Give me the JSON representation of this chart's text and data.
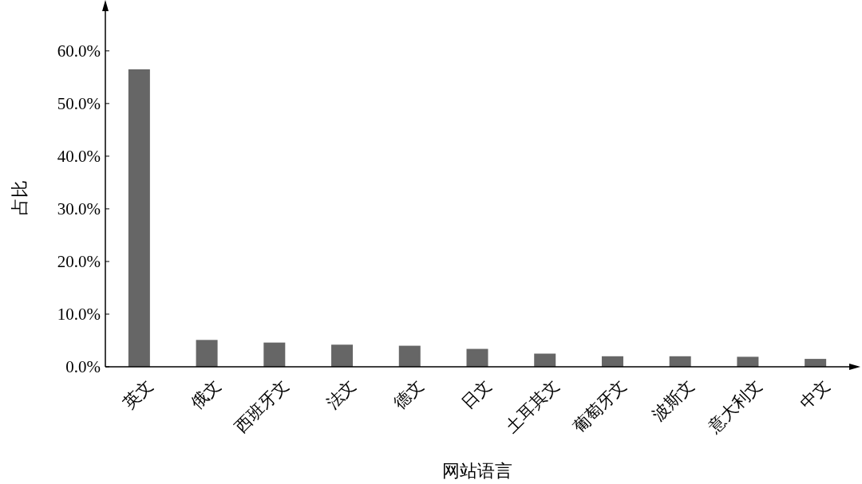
{
  "chart_data": {
    "type": "bar",
    "xlabel": "网站语言",
    "ylabel": "占比",
    "categories": [
      "英文",
      "俄文",
      "西班牙文",
      "法文",
      "德文",
      "日文",
      "土耳其文",
      "葡萄牙文",
      "波斯文",
      "意大利文",
      "中文"
    ],
    "values": [
      56.5,
      5.1,
      4.6,
      4.2,
      4.0,
      3.4,
      2.5,
      2.0,
      2.0,
      1.9,
      1.5
    ],
    "color": "#666666",
    "ylim": [
      0,
      68
    ],
    "yticks": [
      {
        "value": 0,
        "label": "0.0%"
      },
      {
        "value": 10,
        "label": "10.0%"
      },
      {
        "value": 20,
        "label": "20.0%"
      },
      {
        "value": 30,
        "label": "30.0%"
      },
      {
        "value": 40,
        "label": "40.0%"
      },
      {
        "value": 50,
        "label": "50.0%"
      },
      {
        "value": 60,
        "label": "60.0%"
      }
    ]
  }
}
